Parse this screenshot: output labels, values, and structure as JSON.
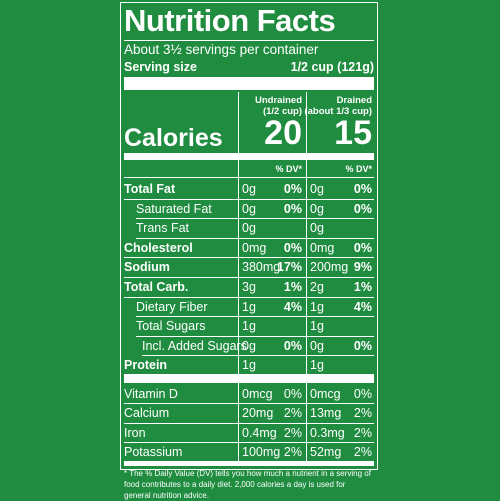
{
  "title": "Nutrition Facts",
  "servings": "About 3½ servings per container",
  "serving_size": {
    "label": "Serving size",
    "value": "1/2 cup (121g)"
  },
  "columns": [
    {
      "name": "Undrained",
      "portion": "(1/2 cup)",
      "calories": "20",
      "dv_header": "% DV*"
    },
    {
      "name": "Drained",
      "portion": "(about 1/3 cup)",
      "calories": "15",
      "dv_header": "% DV*"
    }
  ],
  "calories_label": "Calories",
  "nutrients": [
    {
      "name": "Total Fat",
      "style": "main",
      "amounts": [
        "0g",
        "0g"
      ],
      "dv": [
        "0%",
        "0%"
      ]
    },
    {
      "name": "Saturated Fat",
      "style": "sub",
      "amounts": [
        "0g",
        "0g"
      ],
      "dv": [
        "0%",
        "0%"
      ]
    },
    {
      "name": "Trans Fat",
      "style": "sub",
      "amounts": [
        "0g",
        "0g"
      ],
      "dv": [
        null,
        null
      ]
    },
    {
      "name": "Cholesterol",
      "style": "main",
      "amounts": [
        "0mg",
        "0mg"
      ],
      "dv": [
        "0%",
        "0%"
      ]
    },
    {
      "name": "Sodium",
      "style": "main",
      "amounts": [
        "380mg",
        "200mg"
      ],
      "dv": [
        "17%",
        "9%"
      ]
    },
    {
      "name": "Total Carb.",
      "style": "main",
      "amounts": [
        "3g",
        "2g"
      ],
      "dv": [
        "1%",
        "1%"
      ]
    },
    {
      "name": "Dietary Fiber",
      "style": "sub",
      "amounts": [
        "1g",
        "1g"
      ],
      "dv": [
        "4%",
        "4%"
      ]
    },
    {
      "name": "Total Sugars",
      "style": "sub",
      "amounts": [
        "1g",
        "1g"
      ],
      "dv": [
        null,
        null
      ]
    },
    {
      "name": "Incl. Added Sugars",
      "style": "subsub",
      "amounts": [
        "0g",
        "0g"
      ],
      "dv": [
        "0%",
        "0%"
      ]
    },
    {
      "name": "Protein",
      "style": "main",
      "amounts": [
        "1g",
        "1g"
      ],
      "dv": [
        null,
        null
      ]
    }
  ],
  "vitamins": [
    {
      "name": "Vitamin D",
      "amounts": [
        "0mcg",
        "0mcg"
      ],
      "dv": [
        "0%",
        "0%"
      ]
    },
    {
      "name": "Calcium",
      "amounts": [
        "20mg",
        "13mg"
      ],
      "dv": [
        "2%",
        "2%"
      ]
    },
    {
      "name": "Iron",
      "amounts": [
        "0.4mg",
        "0.3mg"
      ],
      "dv": [
        "2%",
        "2%"
      ]
    },
    {
      "name": "Potassium",
      "amounts": [
        "100mg",
        "52mg"
      ],
      "dv": [
        "2%",
        "2%"
      ]
    }
  ],
  "footnote": "* The % Daily Value (DV) tells you how much a nutrient in a serving of food contributes to a daily diet. 2,000 calories a day is used for general nutrition advice."
}
